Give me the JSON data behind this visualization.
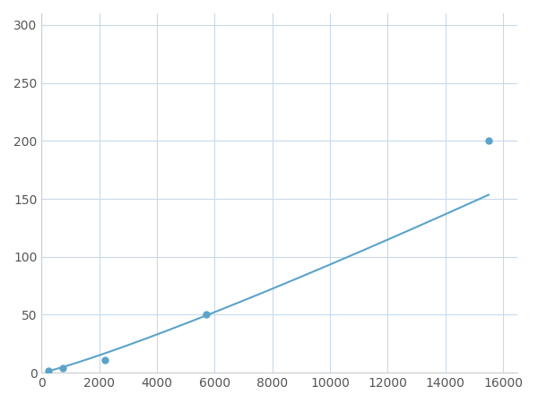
{
  "x_points": [
    250,
    750,
    2200,
    5700,
    15500
  ],
  "y_points": [
    2,
    4,
    11,
    50,
    200
  ],
  "line_color": "#5ba3c9",
  "marker_color": "#5ba3c9",
  "marker_size": 6,
  "line_width": 1.5,
  "xlim": [
    0,
    16500
  ],
  "ylim": [
    0,
    310
  ],
  "xticks": [
    0,
    2000,
    4000,
    6000,
    8000,
    10000,
    12000,
    14000,
    16000
  ],
  "yticks": [
    0,
    50,
    100,
    150,
    200,
    250,
    300
  ],
  "grid_color": "#c8daea",
  "background_color": "#ffffff",
  "tick_label_color": "#555555",
  "tick_label_fontsize": 10
}
